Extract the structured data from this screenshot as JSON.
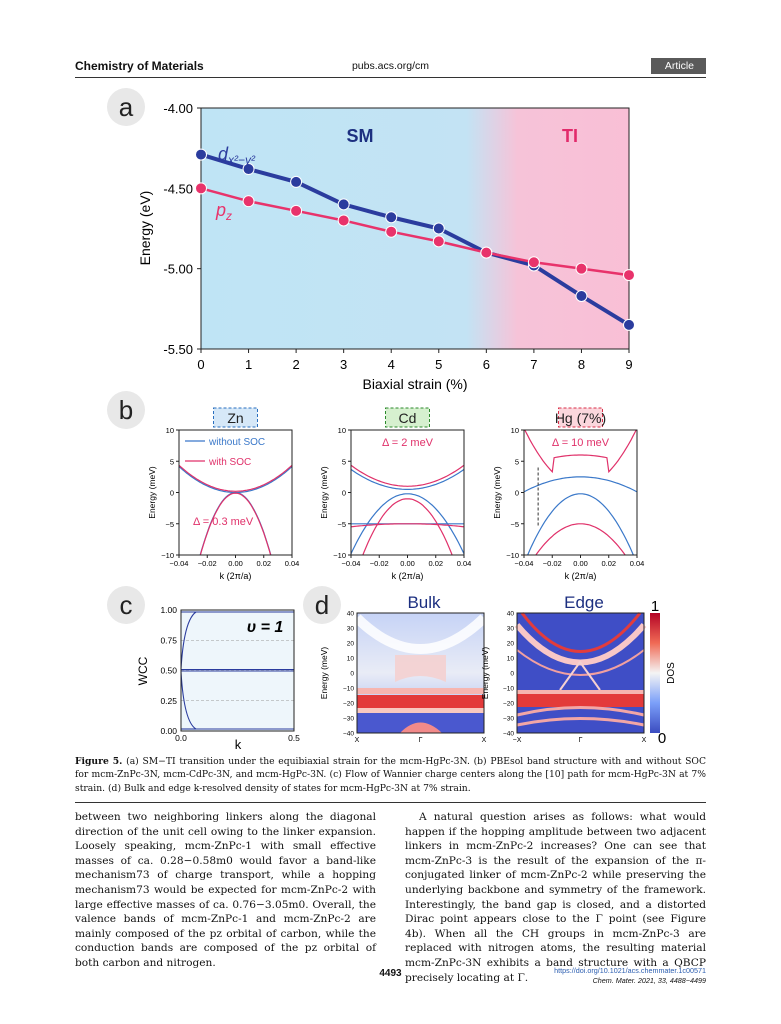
{
  "header": {
    "journal": "Chemistry of Materials",
    "url": "pubs.acs.org/cm",
    "badge": "Article"
  },
  "panels": {
    "a": "a",
    "b": "b",
    "c": "c",
    "d": "d"
  },
  "chart_a": {
    "type": "line",
    "regions": {
      "sm": "SM",
      "ti": "TI"
    },
    "x": [
      0,
      1,
      2,
      3,
      4,
      5,
      6,
      7,
      8,
      9
    ],
    "xlim": [
      0,
      9
    ],
    "ylim": [
      -5.5,
      -4.0
    ],
    "yticks": [
      "-4.00",
      "-4.50",
      "-5.00",
      "-5.50"
    ],
    "xlabel": "Biaxial strain (%)",
    "ylabel": "Energy (eV)",
    "series": [
      {
        "name": "d_{x²−y²}",
        "label_main": "d",
        "label_sub": "x²−y²",
        "color": "#2b3c9e",
        "values": [
          -4.29,
          -4.38,
          -4.46,
          -4.6,
          -4.68,
          -4.75,
          -4.9,
          -4.98,
          -5.17,
          -5.35
        ]
      },
      {
        "name": "p_z",
        "label_main": "p",
        "label_sub": "z",
        "color": "#e8336b",
        "values": [
          -4.5,
          -4.58,
          -4.64,
          -4.7,
          -4.77,
          -4.83,
          -4.9,
          -4.96,
          -5.0,
          -5.04
        ]
      }
    ]
  },
  "chart_b": {
    "xticks": [
      "−0.04",
      "−0.02",
      "0.00",
      "0.02",
      "0.04"
    ],
    "yticks": [
      "10",
      "5",
      "0",
      "−5",
      "−10"
    ],
    "xlabel": "k (2π/a)",
    "ylabel": "Energy (meV)",
    "legend": {
      "without": "without SOC",
      "with": "with SOC"
    },
    "panels": [
      {
        "title": "Zn",
        "delta": "Δ = 0.3 meV"
      },
      {
        "title": "Cd",
        "delta": "Δ = 2 meV"
      },
      {
        "title": "Hg (7%)",
        "delta": "Δ = 10 meV"
      }
    ]
  },
  "chart_c": {
    "label": "υ = 1",
    "ylabel": "WCC",
    "xlabel": "k",
    "yticks": [
      "1.00",
      "0.75",
      "0.50",
      "0.25",
      "0.00"
    ],
    "xticks": [
      "0.0",
      "0.5"
    ]
  },
  "chart_d": {
    "titles": {
      "bulk": "Bulk",
      "edge": "Edge"
    },
    "ylabel": "Energy (meV)",
    "yticks": [
      "40",
      "30",
      "20",
      "10",
      "0",
      "−10",
      "−20",
      "−30",
      "−40"
    ],
    "xticks_bulk": [
      "X",
      "Γ",
      "X"
    ],
    "xticks_edge": [
      "−X",
      "Γ",
      "X"
    ],
    "colorbar": {
      "label": "DOS",
      "max": "1",
      "min": "0"
    }
  },
  "caption": {
    "bold": "Figure 5.",
    "text": " (a) SM−TI transition under the equibiaxial strain for the mcm-HgPc-3N. (b) PBEsol band structure with and without SOC for mcm-ZnPc-3N, mcm-CdPc-3N, and mcm-HgPc-3N. (c) Flow of Wannier charge centers along the [10] path for mcm-HgPc-3N at 7% strain. (d) Bulk and edge k-resolved density of states for mcm-HgPc-3N at 7% strain."
  },
  "body": {
    "left": "between two neighboring linkers along the diagonal direction of the unit cell owing to the linker expansion. Loosely speaking, mcm-ZnPc-1 with small effective masses of ca. 0.28−0.58m0 would favor a band-like mechanism73 of charge transport, while a hopping mechanism73 would be expected for mcm-ZnPc-2 with large effective masses of ca. 0.76−3.05m0. Overall, the valence bands of mcm-ZnPc-1 and mcm-ZnPc-2 are mainly composed of the pz orbital of carbon, while the conduction bands are composed of the pz orbital of both carbon and nitrogen.",
    "right": "A natural question arises as follows: what would happen if the hopping amplitude between two adjacent linkers in mcm-ZnPc-2 increases? One can see that mcm-ZnPc-3 is the result of the expansion of the π-conjugated linker of mcm-ZnPc-2 while preserving the underlying backbone and symmetry of the framework. Interestingly, the band gap is closed, and a distorted Dirac point appears close to the Γ point (see Figure 4b). When all the CH groups in mcm-ZnPc-3 are replaced with nitrogen atoms, the resulting material mcm-ZnPc-3N exhibits a band structure with a QBCP precisely locating at Γ."
  },
  "footer": {
    "page": "4493",
    "doi": "https://doi.org/10.1021/acs.chemmater.1c00571",
    "citation": "Chem. Mater. 2021, 33, 4488−4499"
  }
}
